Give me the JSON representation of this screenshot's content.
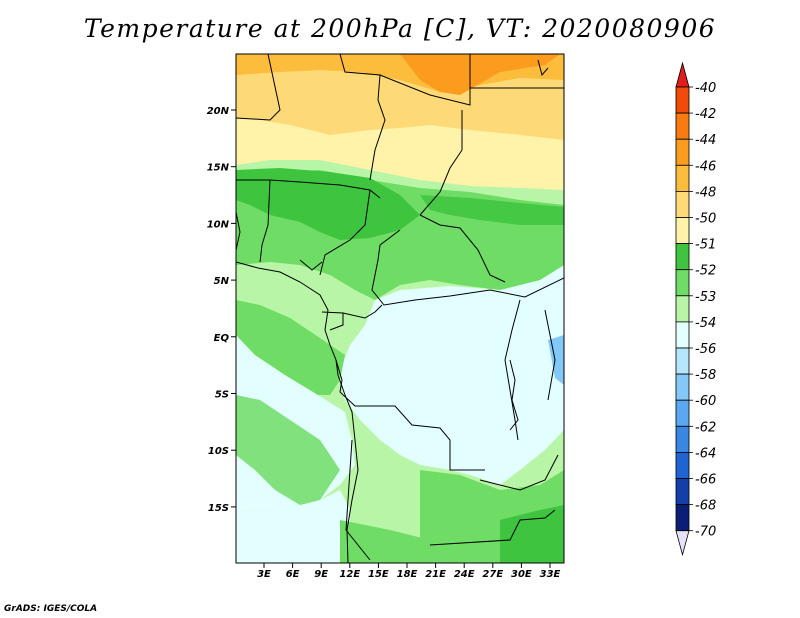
{
  "title": "Temperature at 200hPa [C], VT: 2020080906",
  "footer": "GrADS: IGES/COLA",
  "map": {
    "lat_labels": [
      "20N",
      "15N",
      "10N",
      "5N",
      "EQ",
      "5S",
      "10S",
      "15S"
    ],
    "lon_labels": [
      "3E",
      "6E",
      "9E",
      "12E",
      "15E",
      "18E",
      "21E",
      "24E",
      "27E",
      "30E",
      "33E"
    ]
  },
  "colorbar": {
    "levels": [
      {
        "label": "-40",
        "color": "#e01e1e"
      },
      {
        "label": "-42",
        "color": "#f24a0a"
      },
      {
        "label": "-44",
        "color": "#f97b10"
      },
      {
        "label": "-46",
        "color": "#fb9c1e"
      },
      {
        "label": "-48",
        "color": "#fcbc3c"
      },
      {
        "label": "-50",
        "color": "#fed977"
      },
      {
        "label": "-51",
        "color": "#fef3a8"
      },
      {
        "label": "-52",
        "color": "#3ec43e"
      },
      {
        "label": "-53",
        "color": "#6fdc66"
      },
      {
        "label": "-54",
        "color": "#b8f5a6"
      },
      {
        "label": "-56",
        "color": "#e2fefe"
      },
      {
        "label": "-58",
        "color": "#b5e6fe"
      },
      {
        "label": "-60",
        "color": "#82c8f8"
      },
      {
        "label": "-62",
        "color": "#5aa8ef"
      },
      {
        "label": "-64",
        "color": "#3987e3"
      },
      {
        "label": "-66",
        "color": "#1f64d2"
      },
      {
        "label": "-68",
        "color": "#1240a8"
      },
      {
        "label": "-70",
        "color": "#0a1e78"
      }
    ],
    "lower_triangle_color": "#e6e3f8"
  }
}
